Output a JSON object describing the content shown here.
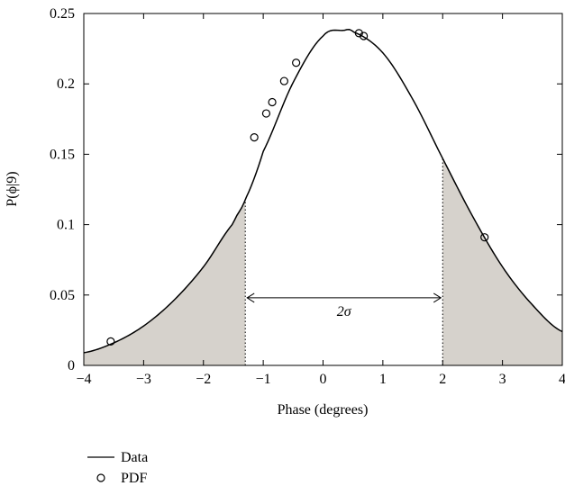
{
  "chart_data": {
    "type": "line",
    "xlabel": "Phase (degrees)",
    "ylabel": "P(ϕ|9)",
    "xlim": [
      -4,
      4
    ],
    "ylim": [
      0,
      0.25
    ],
    "x_ticks": [
      -4,
      -3,
      -2,
      -1,
      0,
      1,
      2,
      3,
      4
    ],
    "x_tick_labels": [
      "−4",
      "−3",
      "−2",
      "−1",
      "0",
      "1",
      "2",
      "3",
      "4"
    ],
    "y_ticks": [
      0,
      0.05,
      0.1,
      0.15,
      0.2,
      0.25
    ],
    "y_tick_labels": [
      "0",
      "0.05",
      "0.1",
      "0.15",
      "0.2",
      "0.25"
    ],
    "grid": false,
    "legend_position": "below-left",
    "series": [
      {
        "name": "Data",
        "kind": "line",
        "color": "#000000",
        "x": [
          -4,
          -3.5,
          -3,
          -2.5,
          -2,
          -1.5,
          -1.3,
          -1,
          -0.5,
          0,
          0.35,
          0.5,
          1,
          1.5,
          2,
          2.5,
          3,
          3.5,
          4
        ],
        "y": [
          0.009,
          0.016,
          0.028,
          0.046,
          0.07,
          0.101,
          0.118,
          0.152,
          0.201,
          0.234,
          0.238,
          0.237,
          0.222,
          0.189,
          0.147,
          0.106,
          0.07,
          0.043,
          0.024
        ]
      },
      {
        "name": "PDF",
        "kind": "scatter",
        "marker": "circle-open",
        "color": "#000000",
        "x": [
          -3.55,
          -1.15,
          -0.95,
          -0.85,
          -0.65,
          -0.45,
          0.6,
          0.68,
          2.7
        ],
        "y": [
          0.017,
          0.162,
          0.179,
          0.187,
          0.202,
          0.215,
          0.236,
          0.234,
          0.091
        ]
      }
    ],
    "shaded_regions": [
      {
        "from": -4,
        "to": -1.3,
        "color": "#d6d2cc"
      },
      {
        "from": 2,
        "to": 4,
        "color": "#d6d2cc"
      }
    ],
    "vertical_lines": [
      {
        "x": -1.3,
        "style": "dotted"
      },
      {
        "x": 2,
        "style": "dotted"
      }
    ],
    "annotations": [
      {
        "text": "2σ",
        "x_from": -1.3,
        "x_to": 2,
        "y": 0.048,
        "kind": "double-arrow"
      }
    ]
  }
}
